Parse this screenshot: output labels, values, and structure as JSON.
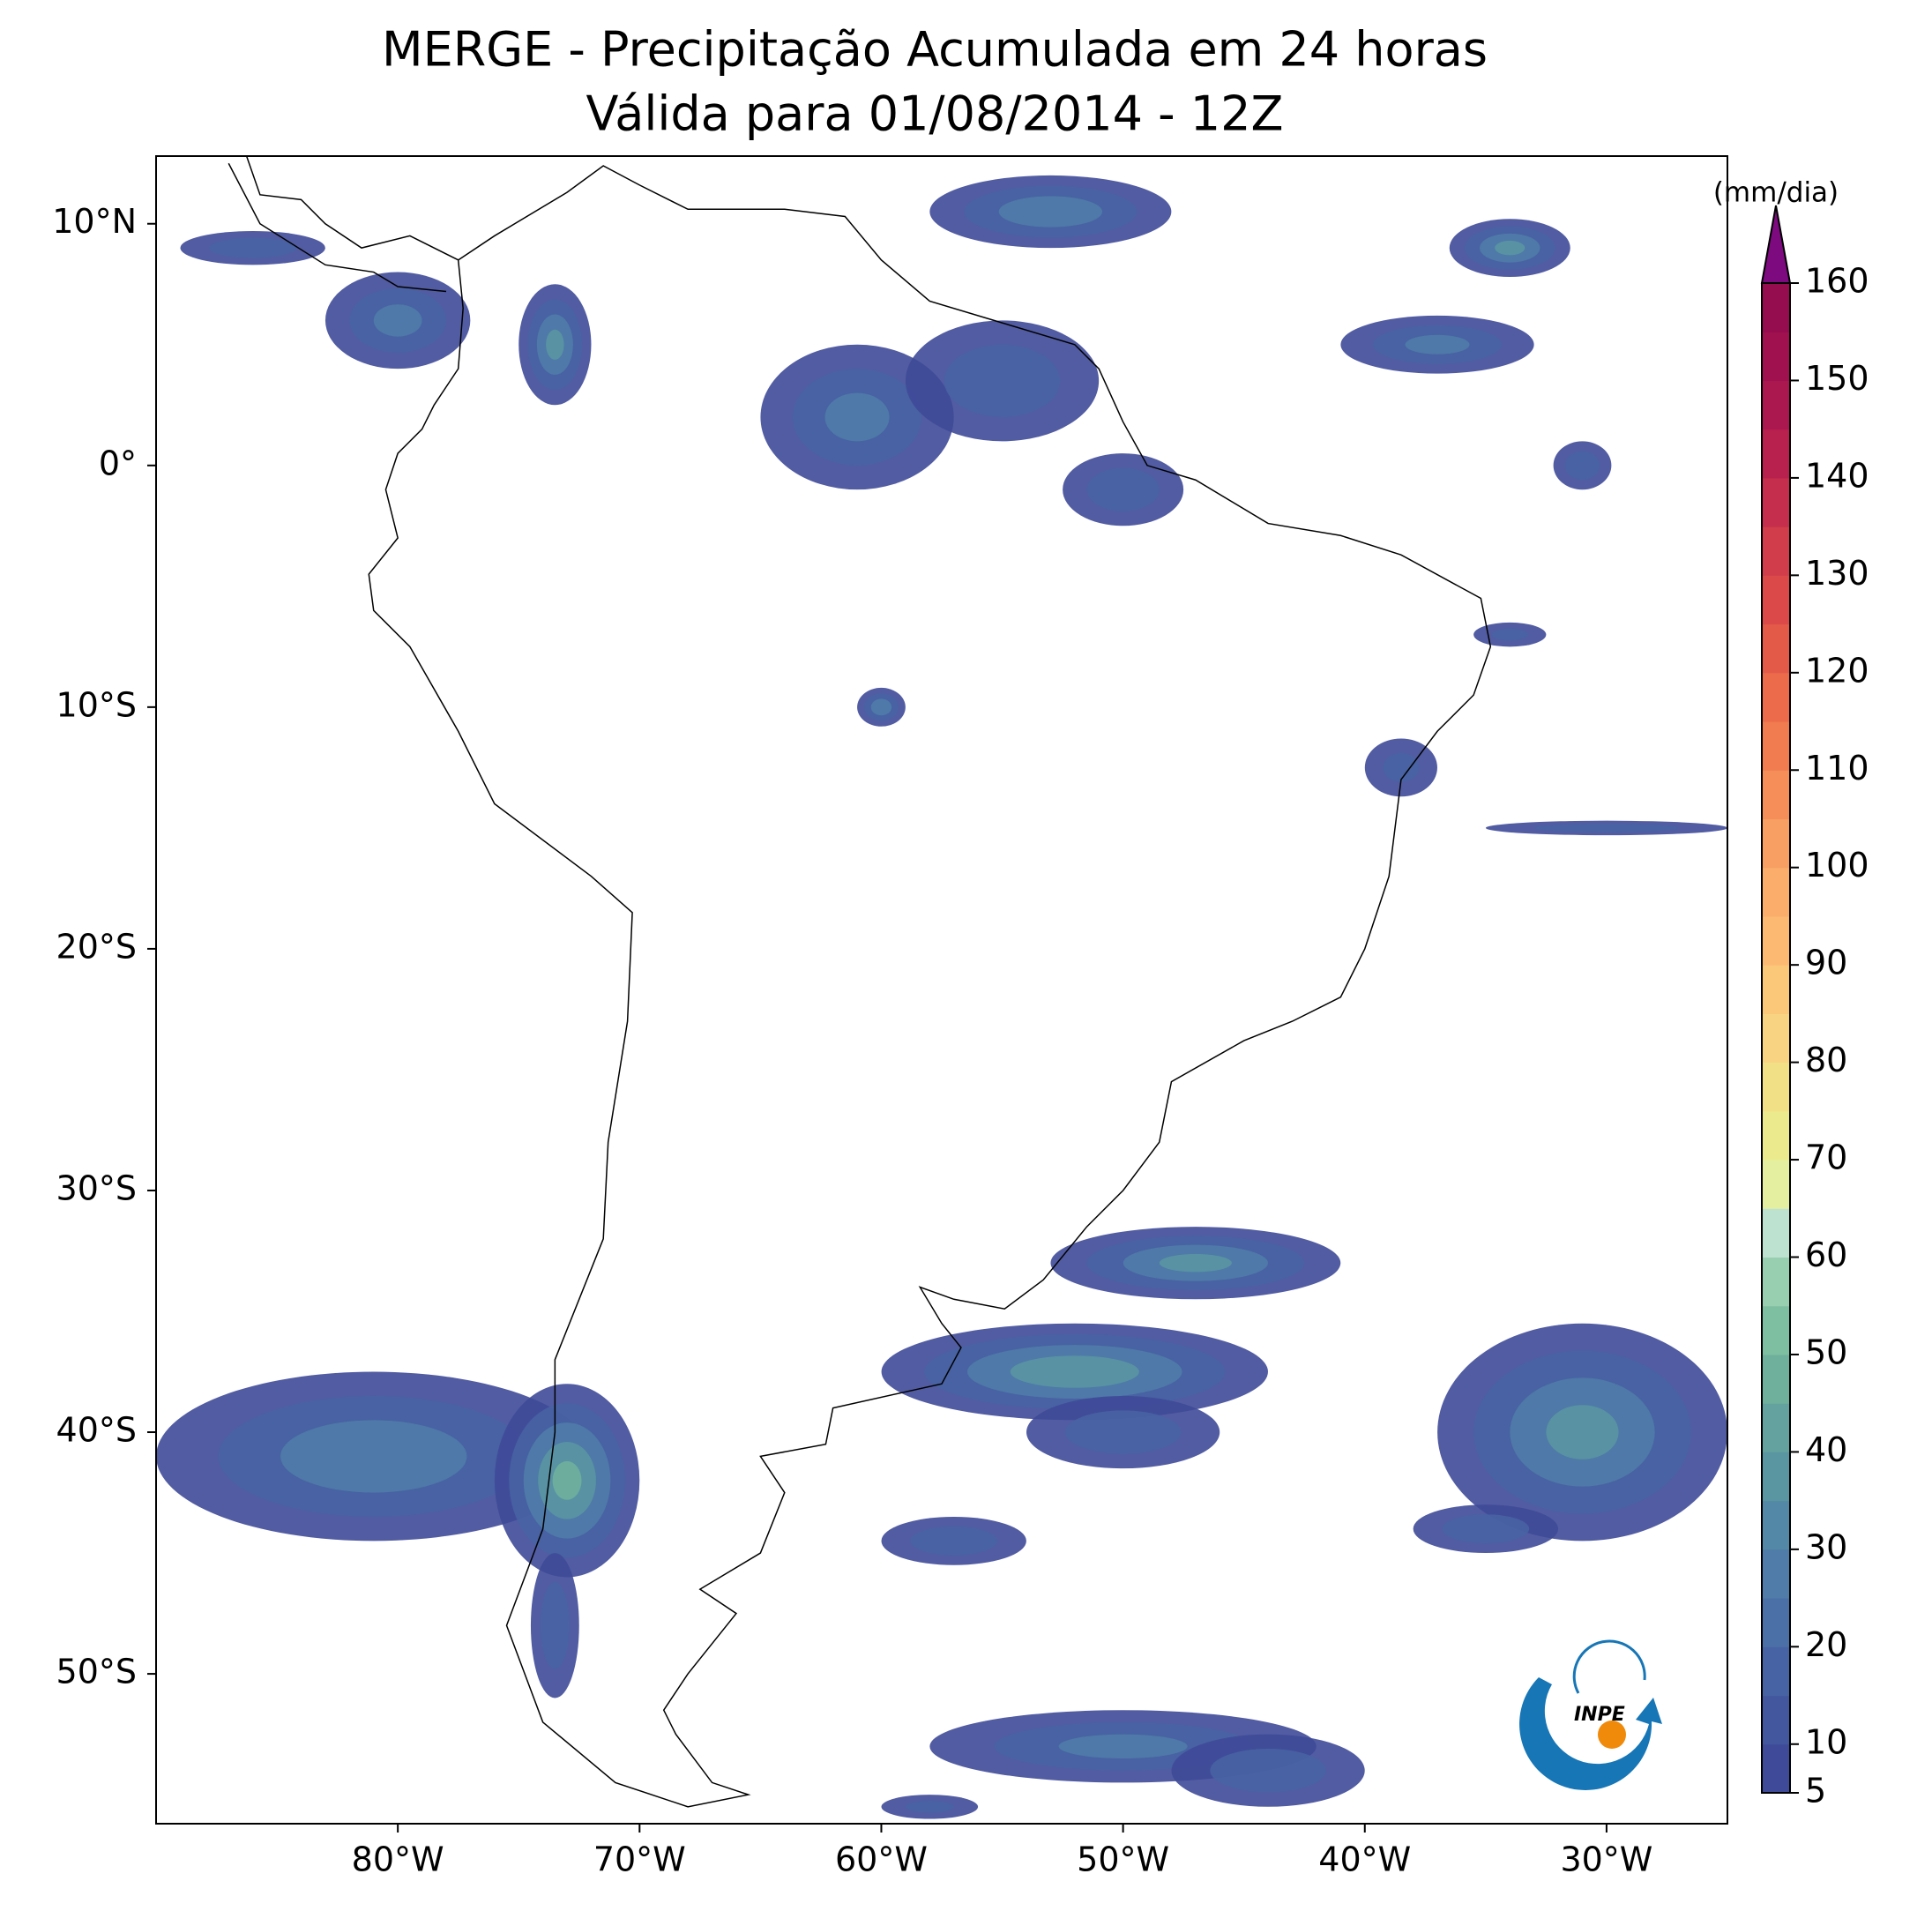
{
  "header": {
    "title": "MERGE - Precipitação Acumulada em 24 horas",
    "subtitle": "Válida para 01/08/2014 - 12Z"
  },
  "map": {
    "xlim": [
      -90,
      -25
    ],
    "ylim": [
      -56.2,
      12.8
    ],
    "xticks": [
      {
        "value": -80,
        "label": "80°W"
      },
      {
        "value": -70,
        "label": "70°W"
      },
      {
        "value": -60,
        "label": "60°W"
      },
      {
        "value": -50,
        "label": "50°W"
      },
      {
        "value": -40,
        "label": "40°W"
      },
      {
        "value": -30,
        "label": "30°W"
      }
    ],
    "yticks": [
      {
        "value": 10,
        "label": "10°N"
      },
      {
        "value": 0,
        "label": "0°"
      },
      {
        "value": -10,
        "label": "10°S"
      },
      {
        "value": -20,
        "label": "20°S"
      },
      {
        "value": -30,
        "label": "30°S"
      },
      {
        "value": -40,
        "label": "40°S"
      },
      {
        "value": -50,
        "label": "50°S"
      }
    ]
  },
  "colorbar": {
    "label": "(mm/dia)",
    "lim": [
      5,
      160
    ],
    "ticks": [
      5,
      10,
      20,
      30,
      40,
      50,
      60,
      70,
      80,
      90,
      100,
      110,
      120,
      130,
      140,
      150,
      160
    ],
    "colors": [
      "#3f4a98",
      "#43579e",
      "#4763a3",
      "#4b70a8",
      "#4f7ca9",
      "#5388a6",
      "#5a95a2",
      "#63a29e",
      "#6fb09d",
      "#7fbfa1",
      "#98cfb0",
      "#bde2d0",
      "#e4f0a0",
      "#ebeb8d",
      "#f2e087",
      "#f8d482",
      "#fbc778",
      "#fcb972",
      "#fbad6c",
      "#f89f63",
      "#f58e58",
      "#f07c4f",
      "#eb6b4a",
      "#e45a49",
      "#db4a49",
      "#d13d4a",
      "#c52e4c",
      "#b8214e",
      "#ab174f",
      "#a0114f",
      "#950c4f"
    ],
    "extend_color": "#7d0a7e"
  },
  "logo": {
    "text": "INPE"
  }
}
